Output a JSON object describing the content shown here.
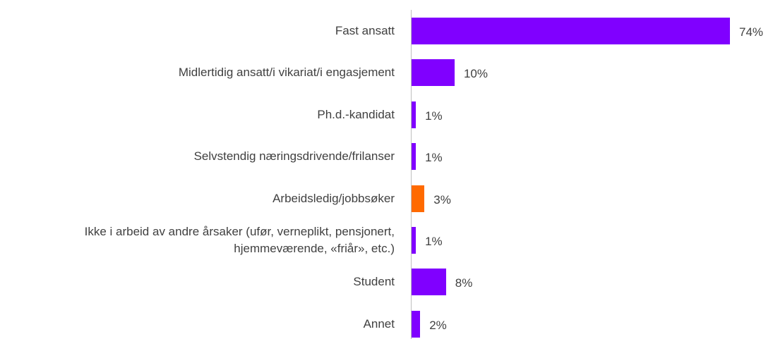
{
  "chart_data": {
    "type": "bar",
    "orientation": "horizontal",
    "categories": [
      "Fast ansatt",
      "Midlertidig ansatt/i vikariat/i engasjement",
      "Ph.d.-kandidat",
      "Selvstendig næringsdrivende/frilanser",
      "Arbeidsledig/jobbsøker",
      "Ikke i arbeid av andre årsaker (ufør, verneplikt, pensjonert,\nhjemmeværende, «friår», etc.)",
      "Student",
      "Annet"
    ],
    "values": [
      74,
      10,
      1,
      1,
      3,
      1,
      8,
      2
    ],
    "value_labels": [
      "74%",
      "10%",
      "1%",
      "1%",
      "3%",
      "1%",
      "8%",
      "2%"
    ],
    "colors": [
      "#8000ff",
      "#8000ff",
      "#8000ff",
      "#8000ff",
      "#ff6a00",
      "#8000ff",
      "#8000ff",
      "#8000ff"
    ]
  }
}
